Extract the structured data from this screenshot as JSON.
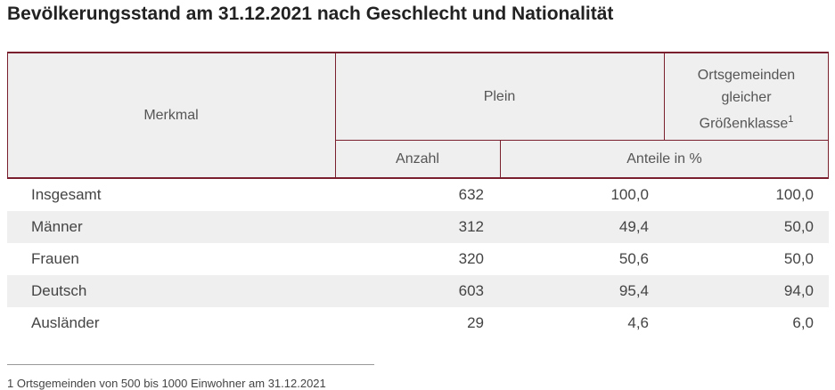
{
  "title": "Bevölkerungsstand am 31.12.2021 nach Geschlecht und Nationalität",
  "table": {
    "header": {
      "merkmal": "Merkmal",
      "plein": "Plein",
      "vergleich": "Ortsgemeinden gleicher Größenklasse",
      "vergleich_note": "1",
      "anzahl": "Anzahl",
      "anteile": "Anteile in %"
    },
    "rows": [
      [
        "Insgesamt",
        "632",
        "100,0",
        "100,0"
      ],
      [
        "Männer",
        "312",
        "49,4",
        "50,0"
      ],
      [
        "Frauen",
        "320",
        "50,6",
        "50,0"
      ],
      [
        "Deutsch",
        "603",
        "95,4",
        "94,0"
      ],
      [
        "Ausländer",
        "29",
        "4,6",
        "6,0"
      ]
    ]
  },
  "footnote": {
    "marker": "1",
    "text": "Ortsgemeinden von 500 bis 1000 Einwohner am 31.12.2021"
  }
}
